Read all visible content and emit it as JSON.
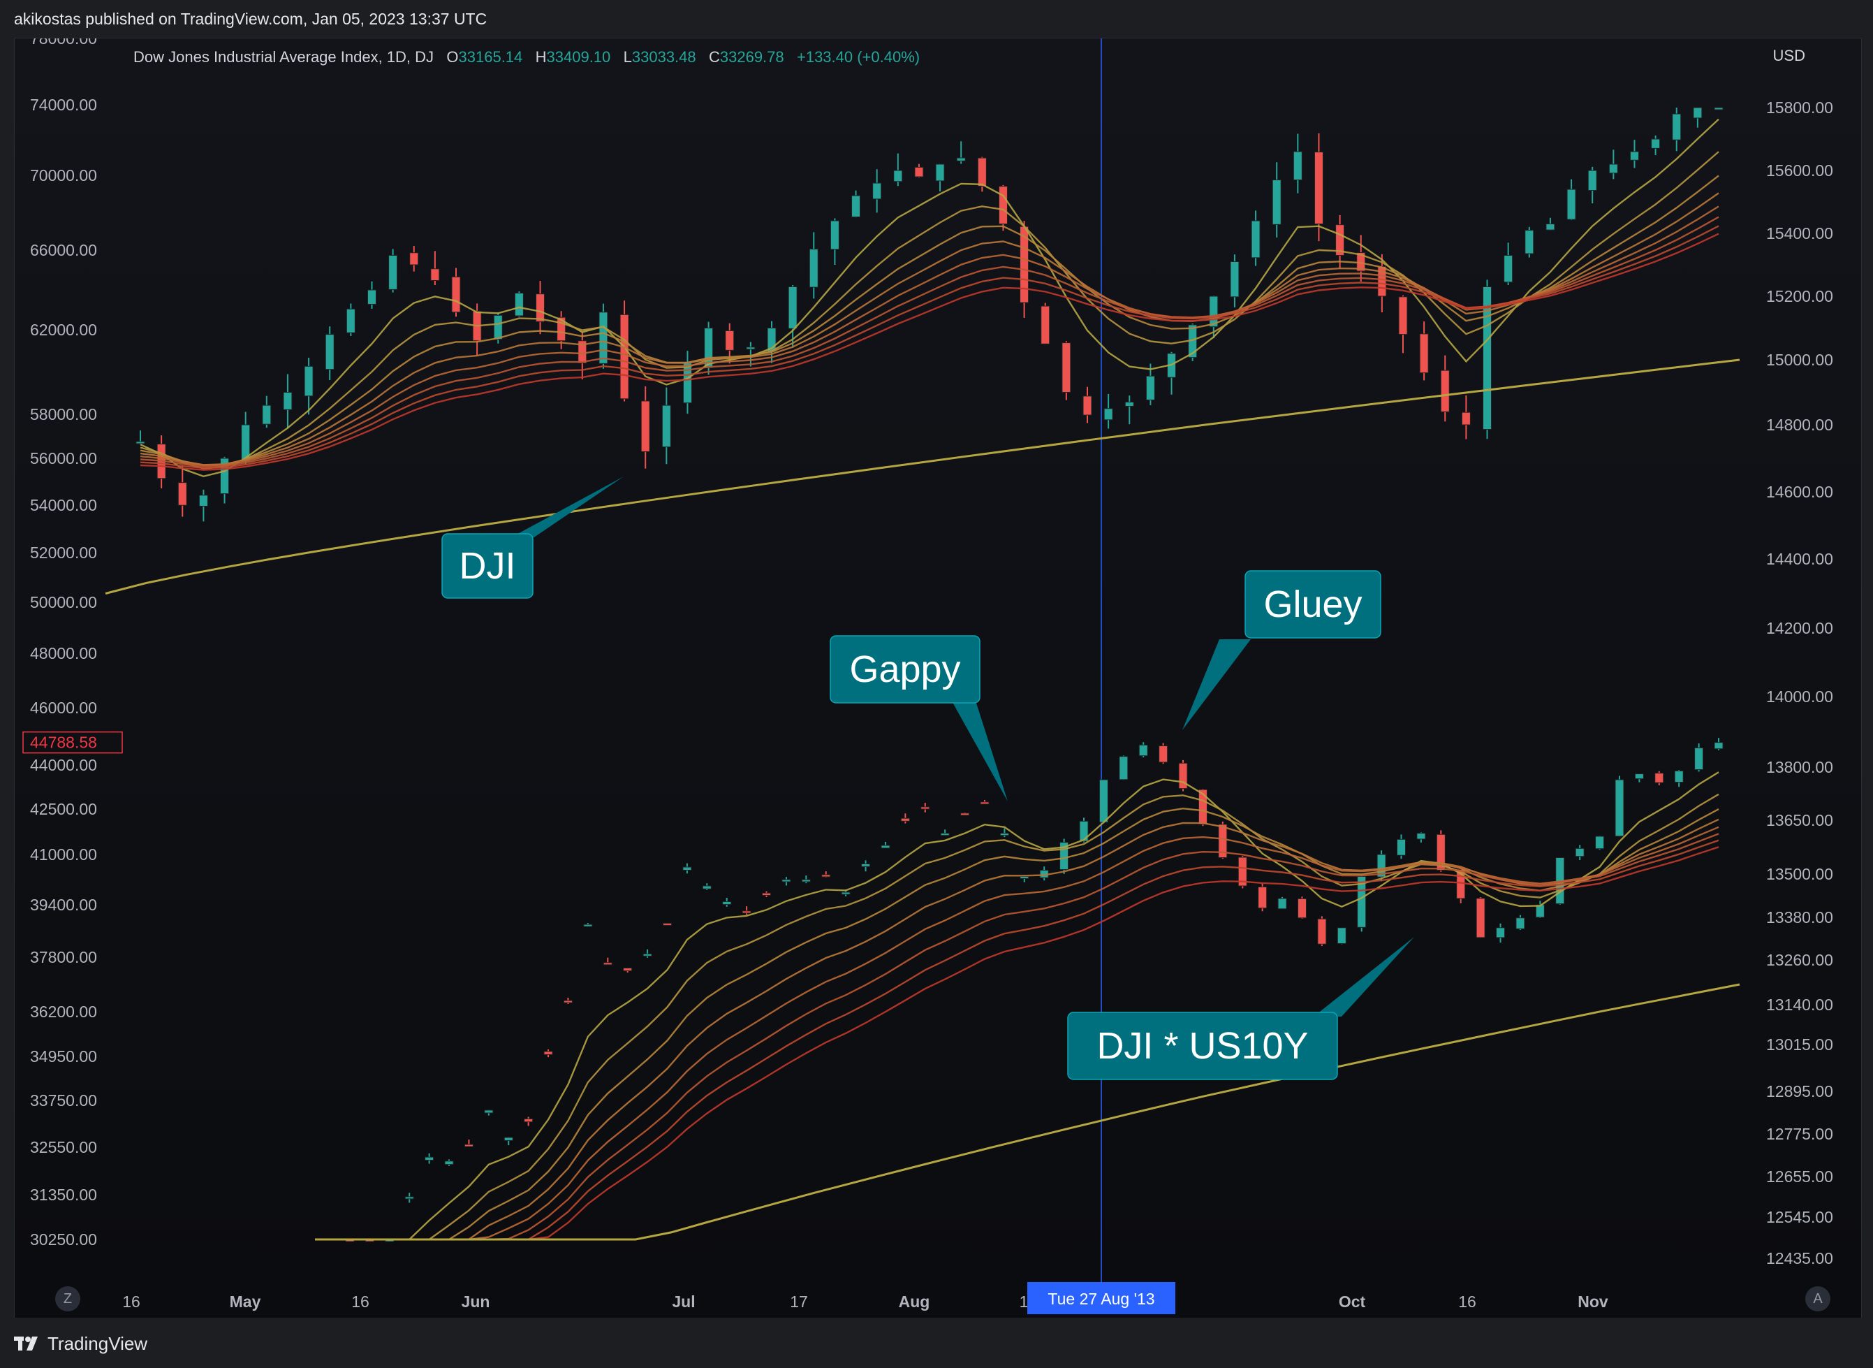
{
  "header": {
    "publish_text": "akikostas published on TradingView.com, Jan 05, 2023 13:37 UTC"
  },
  "legend": {
    "symbol": "Dow Jones Industrial Average Index, 1D, DJ",
    "o_label": "O",
    "o_value": "33165.14",
    "h_label": "H",
    "h_value": "33409.10",
    "l_label": "L",
    "l_value": "33033.48",
    "c_label": "C",
    "c_value": "33269.78",
    "change": "+133.40 (+0.40%)"
  },
  "right_axis_currency": "USD",
  "footer": {
    "brand": "TradingView",
    "z_button": "Z",
    "a_button": "A"
  },
  "colors": {
    "background": "#0b0c0f",
    "up": "#26a69a",
    "down": "#ef5350",
    "ma_200": "#b5a642",
    "ribbon_start": "#b5a642",
    "ribbon_end": "#c0392b",
    "crosshair": "#2962ff",
    "callout": "#00707e",
    "price_tag": "#f23645"
  },
  "chart_data": {
    "type": "candlestick",
    "title": "Dow Jones Industrial Average Index, 1D, DJ",
    "x_axis": {
      "ticks": [
        "16",
        "May",
        "16",
        "Jun",
        "Jul",
        "17",
        "Aug",
        "1",
        "Oct",
        "16",
        "Nov"
      ],
      "crosshair_label": "Tue 27 Aug '13"
    },
    "left_axis": {
      "ticks": [
        "78000.00",
        "74000.00",
        "70000.00",
        "66000.00",
        "62000.00",
        "58000.00",
        "56000.00",
        "54000.00",
        "52000.00",
        "50000.00",
        "48000.00",
        "46000.00",
        "44000.00",
        "42500.00",
        "41000.00",
        "39400.00",
        "37800.00",
        "36200.00",
        "34950.00",
        "33750.00",
        "32550.00",
        "31350.00",
        "30250.00"
      ],
      "current_price": "44788.58"
    },
    "right_axis": {
      "ticks": [
        "15800.00",
        "15600.00",
        "15400.00",
        "15200.00",
        "15000.00",
        "14800.00",
        "14600.00",
        "14400.00",
        "14200.00",
        "14000.00",
        "13800.00",
        "13650.00",
        "13500.00",
        "13380.00",
        "13260.00",
        "13140.00",
        "13015.00",
        "12895.00",
        "12775.00",
        "12655.00",
        "12545.00",
        "12435.00"
      ]
    },
    "series": [
      {
        "name": "DJI",
        "axis": "right",
        "close_path": [
          14750,
          14640,
          14560,
          14590,
          14700,
          14800,
          14860,
          14900,
          14980,
          15080,
          15160,
          15220,
          15330,
          15300,
          15250,
          15150,
          15060,
          15140,
          15210,
          15120,
          15060,
          14990,
          15150,
          14880,
          14720,
          14860,
          14990,
          15100,
          15030,
          15040,
          15100,
          15230,
          15350,
          15440,
          15520,
          15560,
          15600,
          15580,
          15620,
          15640,
          15550,
          15430,
          15180,
          15050,
          14900,
          14830,
          14850,
          14870,
          14950,
          15020,
          15110,
          15200,
          15310,
          15440,
          15570,
          15660,
          15430,
          15330,
          15280,
          15200,
          15080,
          14960,
          14840,
          14800,
          15230,
          15330,
          15410,
          15430,
          15540,
          15600,
          15620,
          15660,
          15700,
          15780,
          15860,
          15920
        ]
      },
      {
        "name": "DJI * US10Y",
        "axis": "left",
        "close_path": [
          29500,
          30000,
          29700,
          31300,
          32300,
          32200,
          32600,
          33500,
          32800,
          33200,
          35000,
          36500,
          38800,
          37600,
          37400,
          37900,
          38800,
          40600,
          40000,
          39500,
          39200,
          39700,
          40200,
          40200,
          40300,
          39800,
          40700,
          41300,
          42100,
          42500,
          41700,
          42300,
          42700,
          41700,
          40300,
          40500,
          41400,
          42100,
          43500,
          44300,
          44700,
          44100,
          43200,
          42000,
          40900,
          40000,
          39300,
          39600,
          39000,
          38200,
          38700,
          40300,
          41000,
          41500,
          41700,
          40500,
          39600,
          38400,
          38700,
          39000,
          39400,
          40900,
          41200,
          41600,
          43500,
          43700,
          43400,
          43800,
          44600,
          44788.58
        ]
      },
      {
        "name": "DJI 200-day MA",
        "axis": "right"
      },
      {
        "name": "DJI * US10Y 200-day MA",
        "axis": "left"
      }
    ],
    "annotations": [
      {
        "text": "DJI"
      },
      {
        "text": "Gappy"
      },
      {
        "text": "Gluey"
      },
      {
        "text": "DJI * US10Y"
      }
    ]
  }
}
